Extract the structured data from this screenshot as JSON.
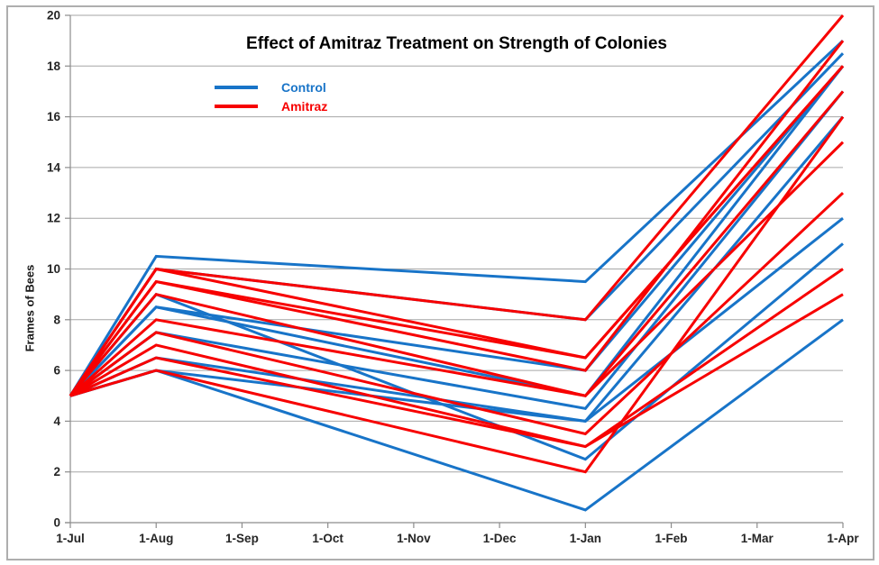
{
  "title": "Effect of Amitraz Treatment on Strength of Colonies",
  "legend": [
    {
      "label": "Control",
      "color": "#1874C8"
    },
    {
      "label": "Amitraz",
      "color": "#F70000"
    }
  ],
  "chart_data": {
    "type": "line",
    "title": "Effect of Amitraz Treatment on Strength of Colonies",
    "xlabel": "",
    "ylabel": "Frames of Bees",
    "ylim": [
      0,
      20
    ],
    "y_ticks": [
      0,
      2,
      4,
      6,
      8,
      10,
      12,
      14,
      16,
      18,
      20
    ],
    "x_tick_labels": [
      "1-Jul",
      "1-Aug",
      "1-Sep",
      "1-Oct",
      "1-Nov",
      "1-Dec",
      "1-Jan",
      "1-Feb",
      "1-Mar",
      "1-Apr"
    ],
    "grid": "horizontal",
    "legend_position": "top-left-inside",
    "point_dates": [
      "1-Jul",
      "1-Aug",
      "1-Jan",
      "1-Apr"
    ],
    "point_month_index": [
      0,
      1,
      6,
      9
    ],
    "groups": {
      "Control": "#1874C8",
      "Amitraz": "#F70000"
    },
    "series": [
      {
        "name": "Control 1",
        "group": "Control",
        "values": [
          5,
          10.5,
          9.5,
          19
        ]
      },
      {
        "name": "Control 2",
        "group": "Control",
        "values": [
          5,
          10,
          8,
          18.5
        ]
      },
      {
        "name": "Control 3",
        "group": "Control",
        "values": [
          5,
          8.5,
          6,
          18
        ]
      },
      {
        "name": "Control 4",
        "group": "Control",
        "values": [
          5,
          8.5,
          5,
          18
        ]
      },
      {
        "name": "Control 5",
        "group": "Control",
        "values": [
          5,
          7.5,
          4.5,
          17
        ]
      },
      {
        "name": "Control 6",
        "group": "Control",
        "values": [
          5,
          6.5,
          4,
          16
        ]
      },
      {
        "name": "Control 7",
        "group": "Control",
        "values": [
          5,
          6,
          4,
          12
        ]
      },
      {
        "name": "Control 8",
        "group": "Control",
        "values": [
          5,
          9,
          2.5,
          11
        ]
      },
      {
        "name": "Control 9",
        "group": "Control",
        "values": [
          5,
          6,
          0.5,
          8
        ]
      },
      {
        "name": "Amitraz 1",
        "group": "Amitraz",
        "values": [
          5,
          10,
          8,
          20
        ]
      },
      {
        "name": "Amitraz 2",
        "group": "Amitraz",
        "values": [
          5,
          9.5,
          6,
          19
        ]
      },
      {
        "name": "Amitraz 3",
        "group": "Amitraz",
        "values": [
          5,
          10,
          6.5,
          18
        ]
      },
      {
        "name": "Amitraz 4",
        "group": "Amitraz",
        "values": [
          5,
          9.5,
          6.5,
          18
        ]
      },
      {
        "name": "Amitraz 5",
        "group": "Amitraz",
        "values": [
          5,
          9,
          5,
          17
        ]
      },
      {
        "name": "Amitraz 6",
        "group": "Amitraz",
        "values": [
          5,
          6,
          2,
          16
        ]
      },
      {
        "name": "Amitraz 7",
        "group": "Amitraz",
        "values": [
          5,
          8,
          5,
          15
        ]
      },
      {
        "name": "Amitraz 8",
        "group": "Amitraz",
        "values": [
          5,
          7.5,
          3.5,
          13
        ]
      },
      {
        "name": "Amitraz 9",
        "group": "Amitraz",
        "values": [
          5,
          7,
          3,
          10
        ]
      },
      {
        "name": "Amitraz 10",
        "group": "Amitraz",
        "values": [
          5,
          6.5,
          3,
          9
        ]
      }
    ]
  }
}
